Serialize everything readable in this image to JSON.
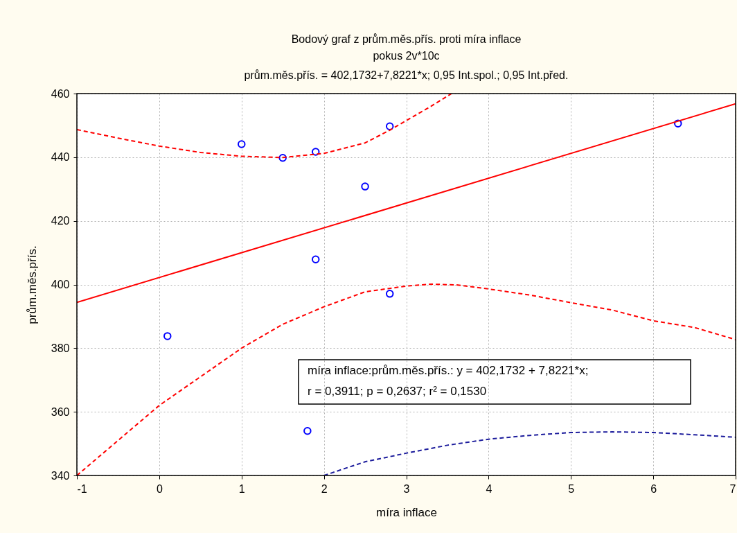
{
  "chart_data": {
    "type": "scatter",
    "title": "Bodový graf z prům.měs.přís. proti míra inflace",
    "subtitle": "pokus 2v*10c",
    "xlabel": "míra inflace",
    "ylabel": "prům.měs.přís.",
    "xlim": [
      -1,
      7
    ],
    "xticks": [
      -1,
      0,
      1,
      2,
      3,
      4,
      5,
      6,
      7
    ],
    "ylim": [
      340,
      460
    ],
    "yticks": [
      340,
      360,
      380,
      400,
      420,
      440,
      460
    ],
    "grid": true,
    "annotations": [
      "prům.měs.přís. = 402,1732+7,8221*x; 0,95 Int.spol.; 0,95 Int.před.",
      "míra inflace:prům.měs.přís.:   y = 402,1732 + 7,8221*x;",
      "r = 0,3911; p = 0,2637; r² = 0,1530"
    ],
    "series": [
      {
        "marker": "circle",
        "color": "#0000ff",
        "x": [
          0.1,
          1.0,
          1.5,
          1.9,
          1.9,
          1.8,
          2.5,
          2.8,
          2.8,
          6.3
        ],
        "values": [
          383.8,
          444.1,
          439.8,
          441.7,
          407.9,
          354.0,
          430.8,
          449.7,
          397.1,
          450.6
        ]
      },
      {
        "type": "line",
        "line_style": "solid",
        "color": "#ff0000",
        "x": [
          -1,
          7
        ],
        "values": [
          394.4,
          456.8
        ]
      },
      {
        "type": "line",
        "line_style": "dashed",
        "color": "#ff0000",
        "x": [
          -1,
          -0.5,
          0,
          0.5,
          1,
          1.5,
          2,
          2.5,
          2.8,
          3,
          3.3,
          3.55
        ],
        "values": [
          448.7,
          446,
          443.5,
          441.5,
          440.3,
          439.9,
          441.2,
          444.5,
          448.5,
          451.5,
          456,
          460
        ]
      },
      {
        "type": "line",
        "line_style": "dashed",
        "color": "#ff0000",
        "x": [
          -1,
          -0.5,
          0,
          0.5,
          1,
          1.5,
          2,
          2.5,
          3,
          3.3,
          3.6,
          4,
          4.5,
          5,
          5.5,
          6,
          6.5,
          7
        ],
        "values": [
          340,
          351,
          362,
          371,
          380,
          387.5,
          393,
          397.7,
          399.5,
          400.1,
          399.9,
          398.6,
          396.7,
          394.3,
          392,
          388.6,
          386.5,
          382.7
        ]
      },
      {
        "type": "line",
        "line_style": "dashed",
        "color": "#1c1c9c",
        "x": [
          2,
          2.5,
          3,
          3.5,
          4,
          4.5,
          5,
          5.5,
          6,
          6.5,
          7
        ],
        "values": [
          340,
          344.3,
          347,
          349.5,
          351.4,
          352.6,
          353.5,
          353.7,
          353.5,
          352.8,
          352
        ]
      }
    ]
  }
}
